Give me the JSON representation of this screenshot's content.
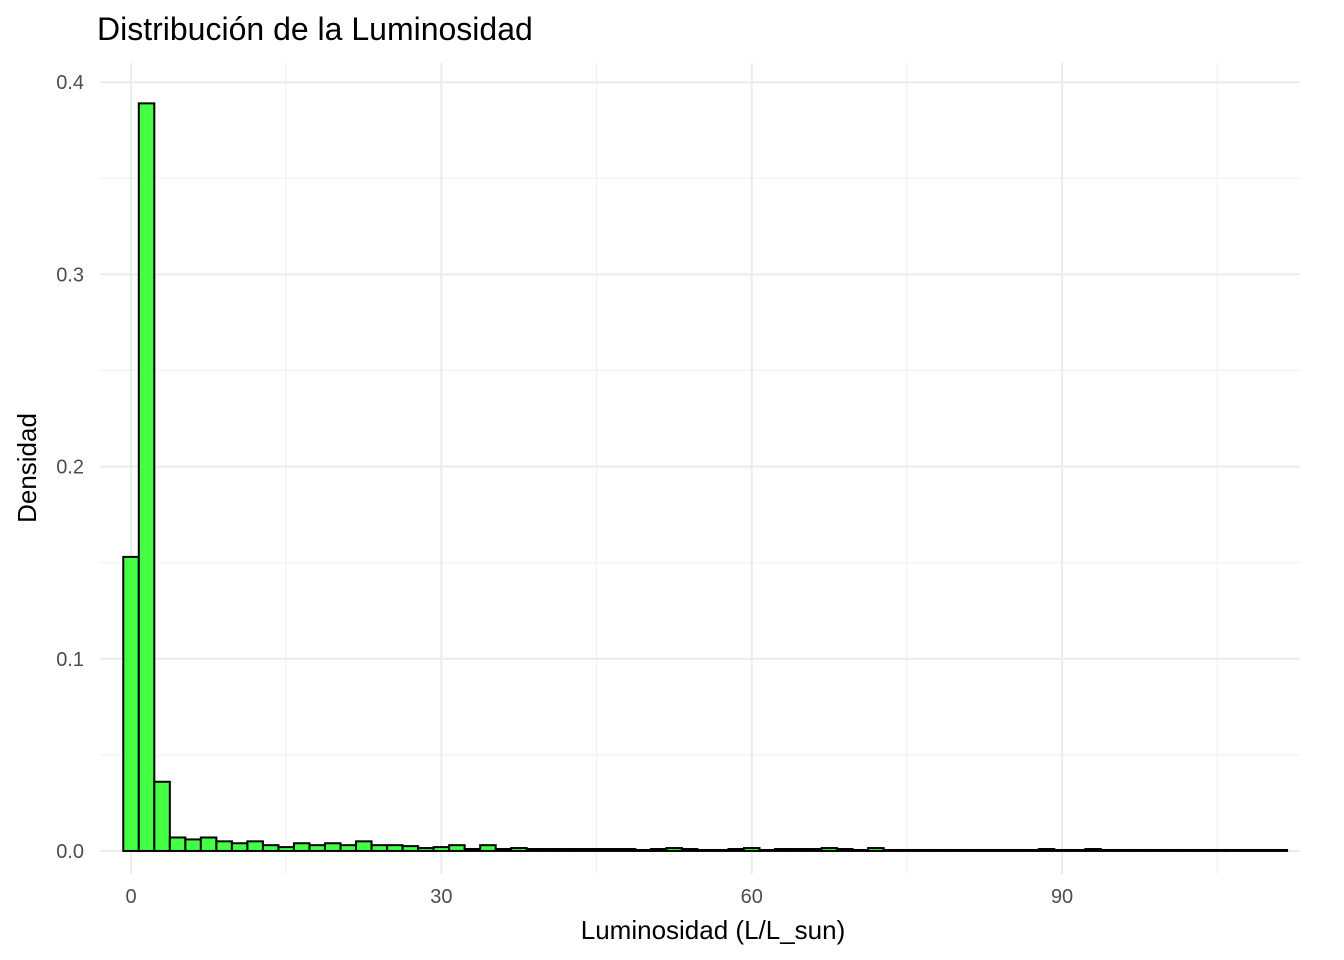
{
  "chart_data": {
    "type": "bar",
    "subtype": "histogram",
    "title": "Distribución de la Luminosidad",
    "xlabel": "Luminosidad (L/L_sun)",
    "ylabel": "Densidad",
    "xlim": [
      -3,
      113
    ],
    "ylim": [
      -0.012,
      0.41
    ],
    "x_ticks": [
      0,
      30,
      60,
      90
    ],
    "y_ticks": [
      0.0,
      0.1,
      0.2,
      0.3,
      0.4
    ],
    "x_tick_labels": [
      "0",
      "30",
      "60",
      "90"
    ],
    "y_tick_labels": [
      "0.0",
      "0.1",
      "0.2",
      "0.3",
      "0.4"
    ],
    "grid": true,
    "bar_fill": "#44ff44",
    "bar_outline": "#000000",
    "bin_width": 1.5,
    "bin_start": -0.75,
    "values": [
      0.153,
      0.389,
      0.036,
      0.007,
      0.006,
      0.007,
      0.005,
      0.004,
      0.005,
      0.003,
      0.002,
      0.004,
      0.003,
      0.004,
      0.003,
      0.005,
      0.003,
      0.003,
      0.0025,
      0.0015,
      0.002,
      0.003,
      0.001,
      0.003,
      0.001,
      0.0015,
      0.001,
      0.001,
      0.001,
      0.001,
      0.001,
      0.001,
      0.001,
      0.0005,
      0.001,
      0.0015,
      0.001,
      0.0005,
      0.0005,
      0.001,
      0.0015,
      0.0005,
      0.001,
      0.001,
      0.001,
      0.0015,
      0.001,
      0.0005,
      0.0015,
      0.0005,
      0.0005,
      0.0005,
      0.0005,
      0.0005,
      0.0005,
      0.0005,
      0.0005,
      0.0005,
      0.0005,
      0.001,
      0.0005,
      0.0005,
      0.001,
      0.0005,
      0.0005,
      0.0005,
      0.0005,
      0.0005,
      0.0005,
      0.0005,
      0.0005,
      0.0005,
      0.0005,
      0.0005,
      0.0005
    ]
  }
}
